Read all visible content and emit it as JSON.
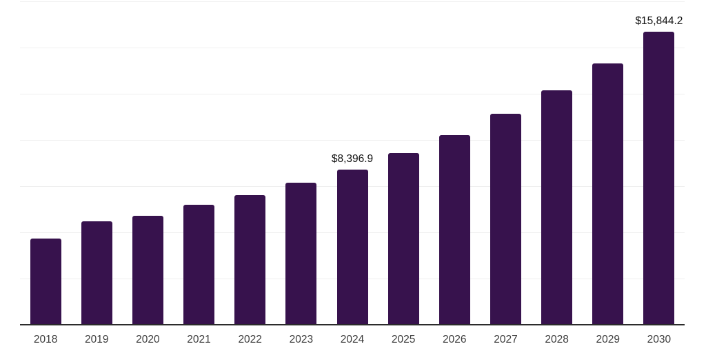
{
  "chart_data": {
    "type": "bar",
    "title": "",
    "xlabel": "",
    "ylabel": "",
    "categories": [
      "2018",
      "2019",
      "2020",
      "2021",
      "2022",
      "2023",
      "2024",
      "2025",
      "2026",
      "2027",
      "2028",
      "2029",
      "2030"
    ],
    "values": [
      4670,
      5610,
      5900,
      6500,
      7010,
      7670,
      8396.9,
      9310,
      10270,
      11430,
      12690,
      14130,
      15844.2
    ],
    "data_labels": [
      {
        "category": "2024",
        "text": "$8,396.9"
      },
      {
        "category": "2030",
        "text": "$15,844.2"
      }
    ],
    "ylim": [
      0,
      17500
    ],
    "gridline_step": 2500,
    "gridlines": [
      2500,
      5000,
      7500,
      10000,
      12500,
      15000,
      17500
    ],
    "grid_visible": true,
    "legend_position": "none"
  },
  "colors": {
    "bar": "#37124d",
    "gridline": "#efefef",
    "axis_line": "#2b2b2b",
    "x_label": "#3c3c3c",
    "data_label": "#111111",
    "background": "#ffffff"
  }
}
